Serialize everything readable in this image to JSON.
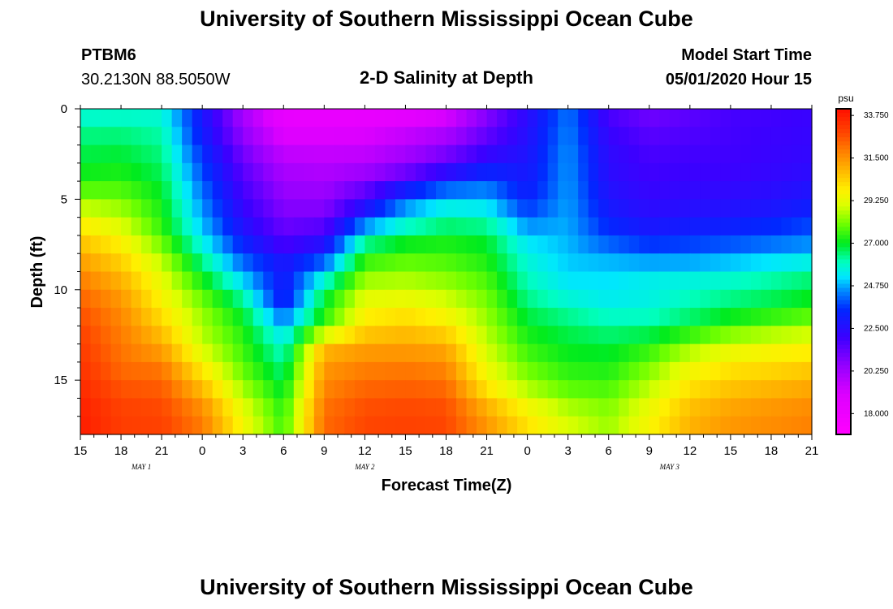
{
  "header": {
    "title_top": "University of Southern Mississippi Ocean Cube",
    "title_bottom": "University of Southern Mississippi Ocean Cube",
    "station": "PTBM6",
    "location": "30.2130N 88.5050W",
    "plot_title": "2-D Salinity at Depth",
    "model_label": "Model Start Time",
    "model_time": "05/01/2020 Hour 15"
  },
  "chart_data": {
    "type": "heatmap",
    "title": "2-D Salinity at Depth",
    "xlabel": "Forecast Time(Z)",
    "ylabel": "Depth (ft)",
    "x_ticks": [
      "15",
      "18",
      "21",
      "0",
      "3",
      "6",
      "9",
      "12",
      "15",
      "18",
      "21",
      "0",
      "3",
      "6",
      "9",
      "12",
      "15",
      "18",
      "21"
    ],
    "date_labels": [
      {
        "label": "MAY 1",
        "tick_index": 1.5
      },
      {
        "label": "MAY 2",
        "tick_index": 7
      },
      {
        "label": "MAY 3",
        "tick_index": 14.5
      }
    ],
    "y_ticks": [
      0,
      5,
      10,
      15
    ],
    "ylim": [
      0,
      18
    ],
    "x_range_hours": [
      0,
      54
    ],
    "colorbar": {
      "unit": "psu",
      "min": 16.9,
      "max": 34.1,
      "tick_labels": [
        "33.750",
        "31.500",
        "29.250",
        "27.000",
        "24.750",
        "22.500",
        "20.250",
        "18.000"
      ],
      "tick_values": [
        33.75,
        31.5,
        29.25,
        27.0,
        24.75,
        22.5,
        20.25,
        18.0
      ]
    },
    "depths_ft": [
      0,
      1,
      2,
      3,
      4,
      5,
      6,
      7,
      8,
      9,
      10,
      11,
      12,
      13,
      14,
      15,
      16,
      17
    ],
    "hours": [
      0,
      3,
      6,
      9,
      12,
      15,
      18,
      21,
      24,
      27,
      30,
      33,
      36,
      39,
      42,
      45,
      48,
      51,
      54
    ],
    "salinity_psu": [
      [
        25.5,
        25.6,
        25.6,
        22.9,
        20.1,
        18.1,
        18.0,
        18.0,
        18.1,
        18.7,
        20.6,
        22.3,
        24.3,
        21.7,
        21.0,
        21.4,
        21.8,
        21.9,
        22.1
      ],
      [
        26.2,
        26.2,
        26.0,
        22.9,
        20.3,
        18.5,
        18.5,
        18.6,
        19.0,
        19.6,
        21.1,
        22.6,
        24.4,
        22.0,
        21.4,
        21.6,
        21.9,
        22.0,
        22.1
      ],
      [
        26.6,
        26.7,
        26.3,
        23.3,
        20.9,
        19.3,
        19.3,
        19.4,
        20.0,
        20.6,
        21.7,
        22.6,
        24.5,
        22.3,
        21.7,
        21.8,
        21.9,
        22.1,
        22.2
      ],
      [
        26.9,
        27.0,
        26.5,
        23.7,
        21.3,
        19.9,
        19.7,
        19.8,
        20.4,
        21.4,
        22.6,
        22.9,
        24.6,
        22.4,
        21.9,
        22.0,
        22.0,
        22.1,
        22.3
      ],
      [
        27.3,
        27.4,
        26.8,
        24.0,
        21.7,
        20.3,
        20.2,
        20.8,
        21.9,
        23.3,
        23.9,
        22.9,
        24.6,
        22.5,
        22.0,
        22.1,
        22.1,
        22.3,
        22.5
      ],
      [
        28.3,
        28.1,
        27.1,
        24.4,
        22.0,
        20.6,
        20.5,
        21.9,
        24.2,
        25.0,
        24.9,
        23.3,
        24.7,
        22.8,
        22.3,
        22.4,
        22.5,
        22.6,
        22.9
      ],
      [
        29.4,
        28.7,
        27.3,
        24.7,
        22.4,
        21.0,
        21.1,
        23.4,
        25.0,
        26.0,
        25.8,
        24.0,
        24.7,
        23.1,
        22.5,
        22.7,
        22.8,
        23.0,
        23.4
      ],
      [
        30.3,
        29.5,
        27.6,
        25.2,
        22.9,
        21.5,
        22.0,
        25.6,
        26.7,
        27.0,
        26.8,
        25.1,
        24.8,
        23.7,
        23.2,
        23.4,
        23.6,
        23.9,
        24.2
      ],
      [
        31.0,
        30.1,
        28.5,
        26.0,
        23.7,
        22.2,
        23.2,
        27.1,
        27.5,
        27.5,
        27.1,
        25.5,
        24.9,
        24.5,
        24.0,
        24.1,
        24.3,
        24.6,
        24.9
      ],
      [
        31.6,
        30.7,
        29.0,
        26.8,
        24.6,
        23.3,
        25.0,
        28.0,
        28.3,
        28.0,
        27.5,
        25.9,
        25.1,
        25.2,
        25.4,
        25.4,
        25.6,
        25.9,
        26.2
      ],
      [
        32.1,
        31.2,
        29.5,
        27.6,
        25.7,
        22.5,
        26.5,
        28.9,
        28.9,
        28.6,
        27.9,
        26.1,
        25.4,
        25.2,
        25.5,
        25.8,
        26.1,
        26.4,
        26.8
      ],
      [
        32.5,
        31.6,
        29.8,
        28.3,
        26.7,
        23.5,
        27.2,
        29.5,
        29.7,
        29.2,
        28.2,
        26.6,
        26.0,
        25.6,
        25.6,
        26.2,
        26.6,
        26.9,
        27.3
      ],
      [
        32.8,
        31.8,
        30.5,
        28.5,
        27.2,
        24.9,
        27.5,
        30.1,
        30.5,
        30.0,
        28.5,
        27.0,
        26.6,
        26.2,
        26.3,
        26.8,
        27.5,
        28.0,
        28.4
      ],
      [
        33.0,
        32.0,
        31.0,
        28.8,
        27.5,
        25.7,
        30.6,
        31.1,
        31.1,
        30.9,
        28.8,
        27.4,
        26.9,
        26.8,
        27.2,
        28.2,
        29.0,
        29.3,
        29.5
      ],
      [
        33.2,
        32.1,
        31.8,
        29.5,
        27.7,
        26.2,
        31.3,
        31.7,
        31.8,
        31.6,
        29.2,
        27.8,
        27.2,
        27.1,
        27.9,
        29.2,
        29.8,
        30.0,
        30.2
      ],
      [
        33.4,
        32.4,
        32.3,
        30.4,
        28.2,
        26.7,
        31.6,
        32.1,
        32.2,
        32.0,
        29.6,
        28.3,
        27.6,
        27.5,
        28.5,
        29.8,
        30.4,
        30.6,
        30.9
      ],
      [
        33.6,
        32.8,
        32.6,
        31.2,
        28.8,
        27.1,
        31.9,
        32.5,
        32.6,
        32.5,
        30.5,
        29.0,
        28.1,
        27.9,
        29.0,
        30.4,
        30.9,
        31.2,
        31.4
      ],
      [
        33.8,
        33.0,
        32.9,
        31.9,
        29.5,
        27.5,
        32.2,
        32.8,
        32.9,
        32.8,
        31.4,
        30.0,
        29.0,
        28.4,
        29.6,
        30.9,
        31.4,
        31.6,
        31.8
      ]
    ]
  }
}
